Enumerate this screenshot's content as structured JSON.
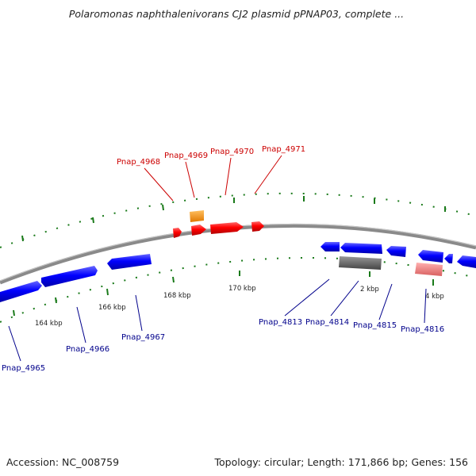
{
  "title": "Polaromonas naphthalenivorans CJ2 plasmid pPNAP03, complete ...",
  "footer": {
    "accession": "Accession: NC_008759",
    "summary": "Topology: circular; Length: 171,866 bp; Genes: 156"
  },
  "scale_labels": [
    "164 kbp",
    "166 kbp",
    "168 kbp",
    "170 kbp",
    "2 kbp",
    "4 kbp"
  ],
  "genes_top": [
    "Pnap_4968",
    "Pnap_4969",
    "Pnap_4970",
    "Pnap_4971"
  ],
  "genes_bottom": [
    "Pnap_4965",
    "Pnap_4966",
    "Pnap_4967",
    "Pnap_4813",
    "Pnap_4814",
    "Pnap_4815",
    "Pnap_4816"
  ],
  "colors": {
    "backbone": "#8a8a8a",
    "tick": "#1a7a1a",
    "forward_gene": "#ff0000",
    "reverse_gene": "#0000ff",
    "highlight_orange": "#ff8c00",
    "grey_feature": "#666666",
    "pink_feature": "#f08080",
    "label_red": "#cc0000",
    "label_blue": "#00008b"
  }
}
